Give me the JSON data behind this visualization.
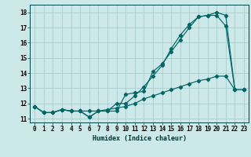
{
  "xlabel": "Humidex (Indice chaleur)",
  "ylabel": "",
  "bg_color": "#cde8e8",
  "grid_color": "#aacccc",
  "line_color": "#006666",
  "xlim": [
    -0.5,
    23.5
  ],
  "ylim": [
    10.75,
    18.5
  ],
  "xticks": [
    0,
    1,
    2,
    3,
    4,
    5,
    6,
    7,
    8,
    9,
    10,
    11,
    12,
    13,
    14,
    15,
    16,
    17,
    18,
    19,
    20,
    21,
    22,
    23
  ],
  "yticks": [
    11,
    12,
    13,
    14,
    15,
    16,
    17,
    18
  ],
  "line1_x": [
    0,
    1,
    2,
    3,
    4,
    5,
    6,
    7,
    8,
    9,
    10,
    11,
    12,
    13,
    14,
    15,
    16,
    17,
    18,
    19,
    20,
    21,
    22,
    23
  ],
  "line1_y": [
    11.8,
    11.4,
    11.4,
    11.6,
    11.5,
    11.5,
    11.1,
    11.5,
    11.5,
    11.5,
    12.6,
    12.7,
    12.8,
    14.1,
    14.6,
    15.4,
    16.2,
    17.0,
    17.7,
    17.8,
    17.8,
    17.1,
    12.9,
    12.9
  ],
  "line2_x": [
    0,
    1,
    2,
    3,
    4,
    5,
    6,
    7,
    8,
    9,
    10,
    11,
    12,
    13,
    14,
    15,
    16,
    17,
    18,
    19,
    20,
    21,
    22,
    23
  ],
  "line2_y": [
    11.8,
    11.4,
    11.4,
    11.6,
    11.5,
    11.5,
    11.1,
    11.5,
    11.5,
    12.0,
    12.0,
    12.5,
    13.1,
    13.8,
    14.5,
    15.6,
    16.5,
    17.2,
    17.7,
    17.8,
    18.0,
    17.8,
    12.9,
    12.9
  ],
  "line3_x": [
    0,
    1,
    2,
    3,
    4,
    5,
    6,
    7,
    8,
    9,
    10,
    11,
    12,
    13,
    14,
    15,
    16,
    17,
    18,
    19,
    20,
    21,
    22,
    23
  ],
  "line3_y": [
    11.8,
    11.4,
    11.4,
    11.6,
    11.5,
    11.5,
    11.5,
    11.5,
    11.6,
    11.7,
    11.8,
    12.0,
    12.3,
    12.5,
    12.7,
    12.9,
    13.1,
    13.3,
    13.5,
    13.6,
    13.8,
    13.8,
    12.9,
    12.9
  ],
  "tick_fontsize": 5.5,
  "xlabel_fontsize": 6.0
}
